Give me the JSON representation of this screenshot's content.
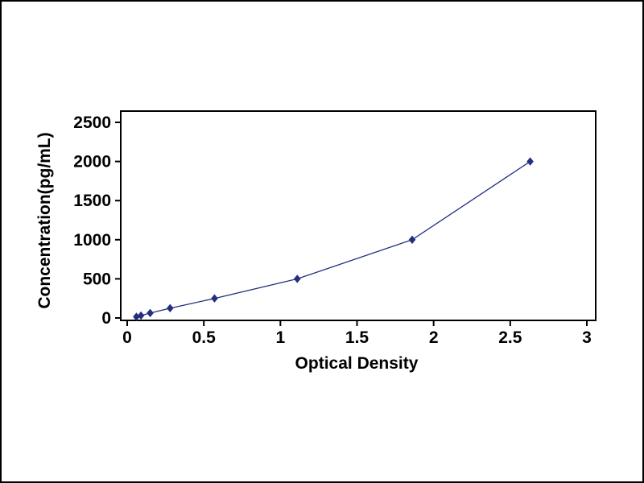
{
  "page": {
    "background_color": "#ffffff",
    "frame_border_color": "#000000"
  },
  "chart_data": {
    "type": "line",
    "title": "",
    "xlabel": "Optical Density",
    "ylabel": "Concentration(pg/mL)",
    "xlim": [
      0,
      3
    ],
    "ylim": [
      0,
      2500
    ],
    "x_ticks": [
      0,
      0.5,
      1,
      1.5,
      2,
      2.5,
      3
    ],
    "x_tick_labels": [
      "0",
      "0.5",
      "1",
      "1.5",
      "2",
      "2.5",
      "3"
    ],
    "y_ticks": [
      0,
      500,
      1000,
      1500,
      2000,
      2500
    ],
    "y_tick_labels": [
      "0",
      "500",
      "1000",
      "1500",
      "2000",
      "2500"
    ],
    "grid": false,
    "legend": "none",
    "marker": "diamond",
    "plot_border_color": "#000000",
    "series": [
      {
        "name": "standard-curve",
        "color": "#232e7d",
        "x": [
          0.06,
          0.09,
          0.15,
          0.28,
          0.57,
          1.11,
          1.86,
          2.63
        ],
        "y": [
          16,
          31,
          63,
          125,
          250,
          500,
          1000,
          2000
        ]
      }
    ]
  }
}
